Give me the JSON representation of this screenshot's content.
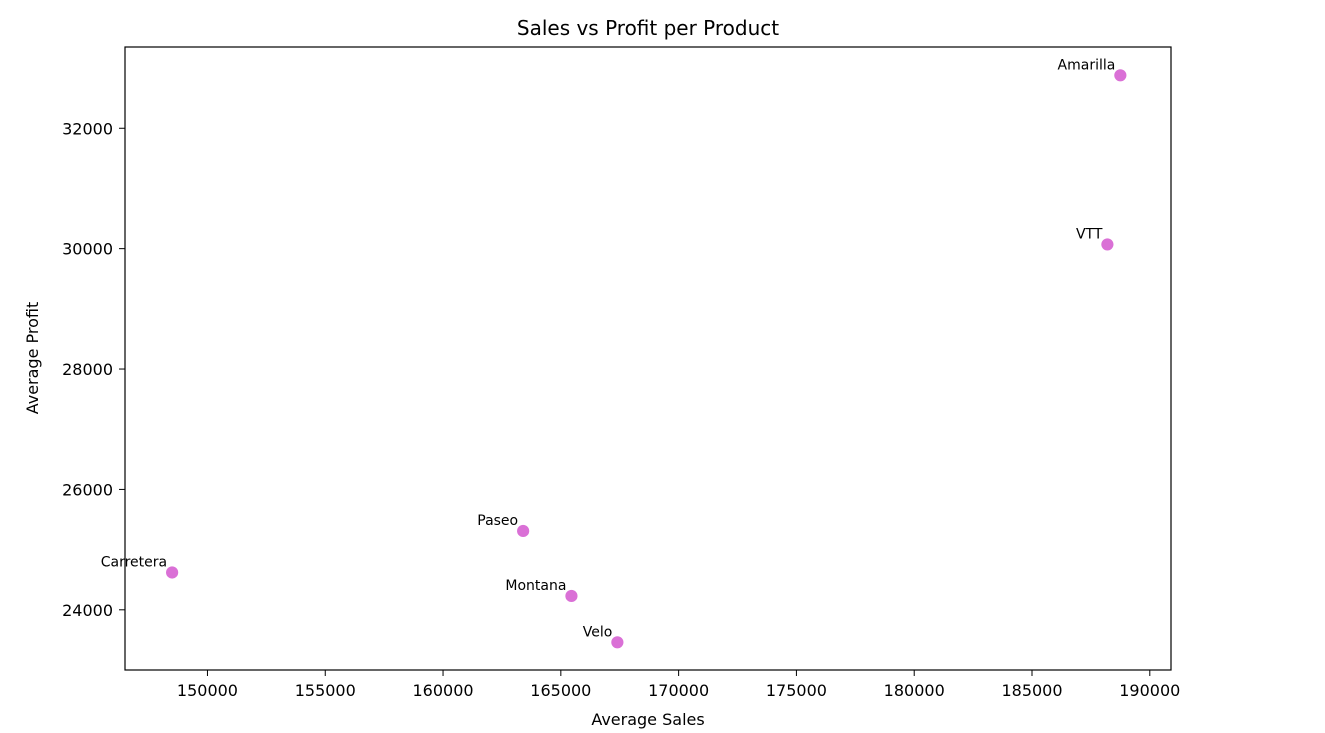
{
  "chart_data": {
    "type": "scatter",
    "title": "Sales vs Profit per Product",
    "xlabel": "Average Sales",
    "ylabel": "Average Profit",
    "xlim": [
      146500,
      190900
    ],
    "ylim": [
      23000,
      33350
    ],
    "x_ticks": [
      150000,
      155000,
      160000,
      165000,
      170000,
      175000,
      180000,
      185000,
      190000
    ],
    "y_ticks": [
      24000,
      26000,
      28000,
      30000,
      32000
    ],
    "grid": false,
    "point_color": "#da70d6",
    "points": [
      {
        "label": "Amarilla",
        "x": 188750,
        "y": 32880
      },
      {
        "label": "VTT",
        "x": 188200,
        "y": 30070
      },
      {
        "label": "Paseo",
        "x": 163400,
        "y": 25310
      },
      {
        "label": "Carretera",
        "x": 148500,
        "y": 24620
      },
      {
        "label": "Montana",
        "x": 165450,
        "y": 24230
      },
      {
        "label": "Velo",
        "x": 167400,
        "y": 23460
      }
    ]
  }
}
